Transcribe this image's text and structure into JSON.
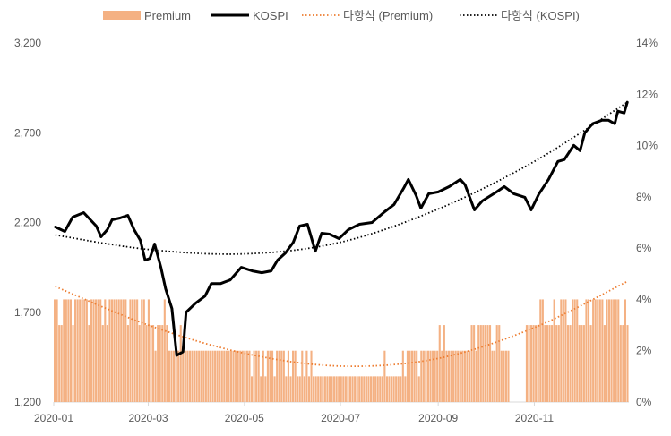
{
  "chart_data": {
    "type": "bar+line",
    "legend": {
      "placement": "top",
      "items": [
        {
          "key": "premium",
          "label": "Premium",
          "swatch": "bar",
          "color": "#F4B183"
        },
        {
          "key": "kospi",
          "label": "KOSPI",
          "swatch": "line",
          "color": "#000000"
        },
        {
          "key": "poly_premium",
          "label": "다항식 (Premium)",
          "swatch": "dotted",
          "color": "#ED7D31"
        },
        {
          "key": "poly_kospi",
          "label": "다항식 (KOSPI)",
          "swatch": "dotted",
          "color": "#000000"
        }
      ]
    },
    "x_ticks": [
      "2020-01",
      "2020-03",
      "2020-05",
      "2020-07",
      "2020-09",
      "2020-11"
    ],
    "x_range": [
      "2020-01-01",
      "2020-12-31"
    ],
    "y_left": {
      "min": 1200,
      "max": 3200,
      "ticks": [
        "1,200",
        "1,700",
        "2,200",
        "2,700",
        "3,200"
      ]
    },
    "y_right": {
      "min": 0,
      "max": 14,
      "ticks": [
        "0%",
        "2%",
        "4%",
        "6%",
        "8%",
        "10%",
        "12%",
        "14%"
      ]
    },
    "series": [
      {
        "name": "KOSPI",
        "axis": "left",
        "color": "#000000",
        "points": [
          [
            "2020-01-02",
            2175
          ],
          [
            "2020-01-08",
            2150
          ],
          [
            "2020-01-13",
            2230
          ],
          [
            "2020-01-20",
            2255
          ],
          [
            "2020-01-28",
            2180
          ],
          [
            "2020-01-31",
            2120
          ],
          [
            "2020-02-04",
            2160
          ],
          [
            "2020-02-07",
            2215
          ],
          [
            "2020-02-12",
            2225
          ],
          [
            "2020-02-17",
            2240
          ],
          [
            "2020-02-21",
            2160
          ],
          [
            "2020-02-25",
            2100
          ],
          [
            "2020-02-28",
            1990
          ],
          [
            "2020-03-02",
            2000
          ],
          [
            "2020-03-05",
            2080
          ],
          [
            "2020-03-09",
            1950
          ],
          [
            "2020-03-12",
            1830
          ],
          [
            "2020-03-16",
            1720
          ],
          [
            "2020-03-19",
            1460
          ],
          [
            "2020-03-23",
            1480
          ],
          [
            "2020-03-25",
            1700
          ],
          [
            "2020-03-31",
            1750
          ],
          [
            "2020-04-06",
            1790
          ],
          [
            "2020-04-10",
            1860
          ],
          [
            "2020-04-16",
            1860
          ],
          [
            "2020-04-22",
            1880
          ],
          [
            "2020-04-29",
            1950
          ],
          [
            "2020-05-06",
            1930
          ],
          [
            "2020-05-12",
            1920
          ],
          [
            "2020-05-18",
            1930
          ],
          [
            "2020-05-22",
            1990
          ],
          [
            "2020-05-27",
            2030
          ],
          [
            "2020-06-01",
            2090
          ],
          [
            "2020-06-05",
            2180
          ],
          [
            "2020-06-10",
            2190
          ],
          [
            "2020-06-15",
            2040
          ],
          [
            "2020-06-19",
            2140
          ],
          [
            "2020-06-24",
            2135
          ],
          [
            "2020-06-30",
            2110
          ],
          [
            "2020-07-06",
            2160
          ],
          [
            "2020-07-13",
            2190
          ],
          [
            "2020-07-21",
            2200
          ],
          [
            "2020-07-29",
            2260
          ],
          [
            "2020-08-04",
            2300
          ],
          [
            "2020-08-10",
            2390
          ],
          [
            "2020-08-13",
            2440
          ],
          [
            "2020-08-18",
            2350
          ],
          [
            "2020-08-21",
            2280
          ],
          [
            "2020-08-26",
            2360
          ],
          [
            "2020-09-01",
            2370
          ],
          [
            "2020-09-08",
            2400
          ],
          [
            "2020-09-15",
            2440
          ],
          [
            "2020-09-18",
            2410
          ],
          [
            "2020-09-24",
            2270
          ],
          [
            "2020-09-29",
            2320
          ],
          [
            "2020-10-08",
            2370
          ],
          [
            "2020-10-13",
            2400
          ],
          [
            "2020-10-19",
            2360
          ],
          [
            "2020-10-26",
            2340
          ],
          [
            "2020-10-30",
            2270
          ],
          [
            "2020-11-04",
            2360
          ],
          [
            "2020-11-10",
            2440
          ],
          [
            "2020-11-16",
            2540
          ],
          [
            "2020-11-20",
            2550
          ],
          [
            "2020-11-26",
            2630
          ],
          [
            "2020-11-30",
            2600
          ],
          [
            "2020-12-03",
            2700
          ],
          [
            "2020-12-08",
            2750
          ],
          [
            "2020-12-14",
            2770
          ],
          [
            "2020-12-18",
            2770
          ],
          [
            "2020-12-22",
            2750
          ],
          [
            "2020-12-24",
            2820
          ],
          [
            "2020-12-28",
            2810
          ],
          [
            "2020-12-30",
            2870
          ]
        ]
      },
      {
        "name": "Premium",
        "axis": "right",
        "color": "#F4B183",
        "values": [
          4.0,
          4.0,
          3.0,
          3.0,
          4.0,
          4.0,
          4.0,
          4.0,
          3.0,
          4.0,
          4.0,
          4.0,
          4.0,
          4.0,
          4.0,
          3.0,
          4.0,
          4.0,
          4.0,
          4.0,
          4.0,
          3.0,
          4.0,
          3.0,
          4.0,
          4.0,
          4.0,
          4.0,
          4.0,
          4.0,
          4.0,
          4.0,
          3.0,
          4.0,
          4.0,
          4.0,
          4.0,
          3.0,
          4.0,
          4.0,
          3.0,
          4.0,
          3.0,
          3.0,
          2.0,
          3.0,
          3.0,
          3.0,
          4.0,
          3.0,
          2.0,
          2.0,
          2.0,
          2.0,
          2.0,
          3.0,
          2.0,
          2.0,
          2.0,
          2.0,
          2.0,
          2.0,
          2.0,
          2.0,
          2.0,
          2.0,
          2.0,
          2.0,
          2.0,
          2.0,
          2.0,
          2.0,
          2.0,
          2.0,
          2.0,
          2.0,
          2.0,
          2.0,
          2.0,
          2.0,
          2.0,
          2.0,
          2.0,
          2.0,
          2.0,
          2.0,
          1.0,
          2.0,
          2.0,
          2.0,
          1.0,
          2.0,
          1.0,
          2.0,
          2.0,
          2.0,
          1.0,
          2.0,
          2.0,
          2.0,
          2.0,
          1.0,
          2.0,
          1.0,
          2.0,
          2.0,
          1.0,
          1.0,
          2.0,
          1.0,
          2.0,
          1.0,
          2.0,
          1.0,
          1.0,
          1.0,
          1.0,
          1.0,
          1.0,
          1.0,
          1.0,
          1.0,
          1.0,
          1.0,
          1.0,
          1.0,
          1.0,
          1.0,
          1.0,
          1.0,
          1.0,
          1.0,
          1.0,
          1.0,
          1.0,
          1.0,
          1.0,
          1.0,
          1.0,
          1.0,
          1.0,
          1.0,
          1.0,
          1.0,
          2.0,
          1.0,
          1.0,
          1.0,
          1.0,
          1.0,
          1.0,
          1.0,
          2.0,
          1.0,
          2.0,
          2.0,
          2.0,
          2.0,
          2.0,
          1.0,
          2.0,
          2.0,
          2.0,
          2.0,
          2.0,
          2.0,
          2.0,
          2.0,
          3.0,
          2.0,
          3.0,
          2.0,
          2.0,
          2.0,
          2.0,
          2.0,
          2.0,
          2.0,
          2.0,
          2.0,
          2.0,
          2.0,
          3.0,
          3.0,
          2.0,
          3.0,
          3.0,
          3.0,
          3.0,
          3.0,
          3.0,
          2.0,
          2.0,
          3.0,
          3.0,
          2.0,
          2.0,
          2.0,
          2.0,
          0.0,
          0.0,
          0.0,
          0.0,
          0.0,
          0.0,
          0.0,
          3.0,
          3.0,
          3.0,
          3.0,
          3.0,
          3.0,
          4.0,
          4.0,
          3.0,
          3.0,
          3.0,
          3.0,
          4.0,
          3.0,
          3.0,
          4.0,
          4.0,
          4.0,
          3.0,
          3.0,
          4.0,
          4.0,
          4.0,
          3.0,
          3.0,
          3.0,
          4.0,
          4.0,
          3.0,
          4.0,
          4.0,
          4.0,
          4.0,
          4.0,
          3.0,
          4.0,
          4.0,
          4.0,
          4.0,
          4.0,
          4.0,
          3.0,
          3.0,
          4.0,
          3.0
        ]
      },
      {
        "name": "다항식 (Premium)",
        "axis": "right",
        "color": "#ED7D31",
        "style": "dotted",
        "points": [
          [
            "2020-01-02",
            4.5
          ],
          [
            "2020-03-01",
            3.0
          ],
          [
            "2020-05-01",
            1.9
          ],
          [
            "2020-07-01",
            1.4
          ],
          [
            "2020-09-01",
            1.7
          ],
          [
            "2020-11-01",
            2.9
          ],
          [
            "2020-12-30",
            4.7
          ]
        ]
      },
      {
        "name": "다항식 (KOSPI)",
        "axis": "left",
        "color": "#000000",
        "style": "dotted",
        "points": [
          [
            "2020-01-02",
            2130
          ],
          [
            "2020-03-01",
            2050
          ],
          [
            "2020-05-01",
            2025
          ],
          [
            "2020-07-01",
            2090
          ],
          [
            "2020-09-01",
            2275
          ],
          [
            "2020-11-01",
            2540
          ],
          [
            "2020-12-30",
            2870
          ]
        ]
      }
    ]
  }
}
